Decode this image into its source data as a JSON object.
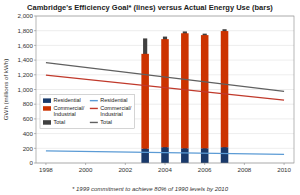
{
  "chart_data": {
    "type": "bar",
    "title": "Cambridge's Efficiency Goal* (lines) versus Actual Energy Use (bars)",
    "ylabel": "GWh (millions of kWh)",
    "annotations": [
      "* 1999 commitment to achieve 80% of 1990 levels by 2010"
    ],
    "xlim": [
      1997.5,
      2010.5
    ],
    "ylim": [
      0,
      2000
    ],
    "xticks": [
      1998,
      2000,
      2002,
      2004,
      2006,
      2008,
      2010
    ],
    "yticks": [
      0,
      200,
      400,
      600,
      800,
      {
        "value": 1000,
        "label": "1,000"
      },
      {
        "value": 1200,
        "label": "1,200"
      },
      {
        "value": 1400,
        "label": "1,400"
      },
      {
        "value": 1600,
        "label": "1,600"
      },
      {
        "value": 1800,
        "label": "1,800"
      },
      {
        "value": 2000,
        "label": "2,000"
      }
    ],
    "grid": true,
    "legend": "left",
    "series": [
      {
        "name": "Residential",
        "type": "bar",
        "stacked": true,
        "color": "#1a3a6b",
        "x": [
          2003,
          2004,
          2005,
          2006,
          2007
        ],
        "values": [
          195,
          215,
          200,
          200,
          215
        ]
      },
      {
        "name": "Commercial/\nIndustrial",
        "type": "bar",
        "stacked": true,
        "color": "#cc3300",
        "x": [
          2003,
          2004,
          2005,
          2006,
          2007
        ],
        "values": [
          1290,
          1470,
          1565,
          1540,
          1580
        ]
      },
      {
        "name": "Total",
        "type": "bar",
        "color": "#404040",
        "x": [
          2003,
          2004,
          2005,
          2006,
          2007
        ],
        "values": [
          1695,
          1720,
          1790,
          1760,
          1820
        ]
      },
      {
        "name": "Residential",
        "type": "line",
        "color": "#5b9bd5",
        "x": [
          1998,
          2010
        ],
        "values": [
          165,
          118
        ]
      },
      {
        "name": "Commercial/\nIndustrial",
        "type": "line",
        "color": "#c0392b",
        "x": [
          1998,
          2010
        ],
        "values": [
          1195,
          855
        ]
      },
      {
        "name": "Total",
        "type": "line",
        "color": "#606060",
        "x": [
          1998,
          2010
        ],
        "values": [
          1365,
          975
        ]
      }
    ]
  }
}
